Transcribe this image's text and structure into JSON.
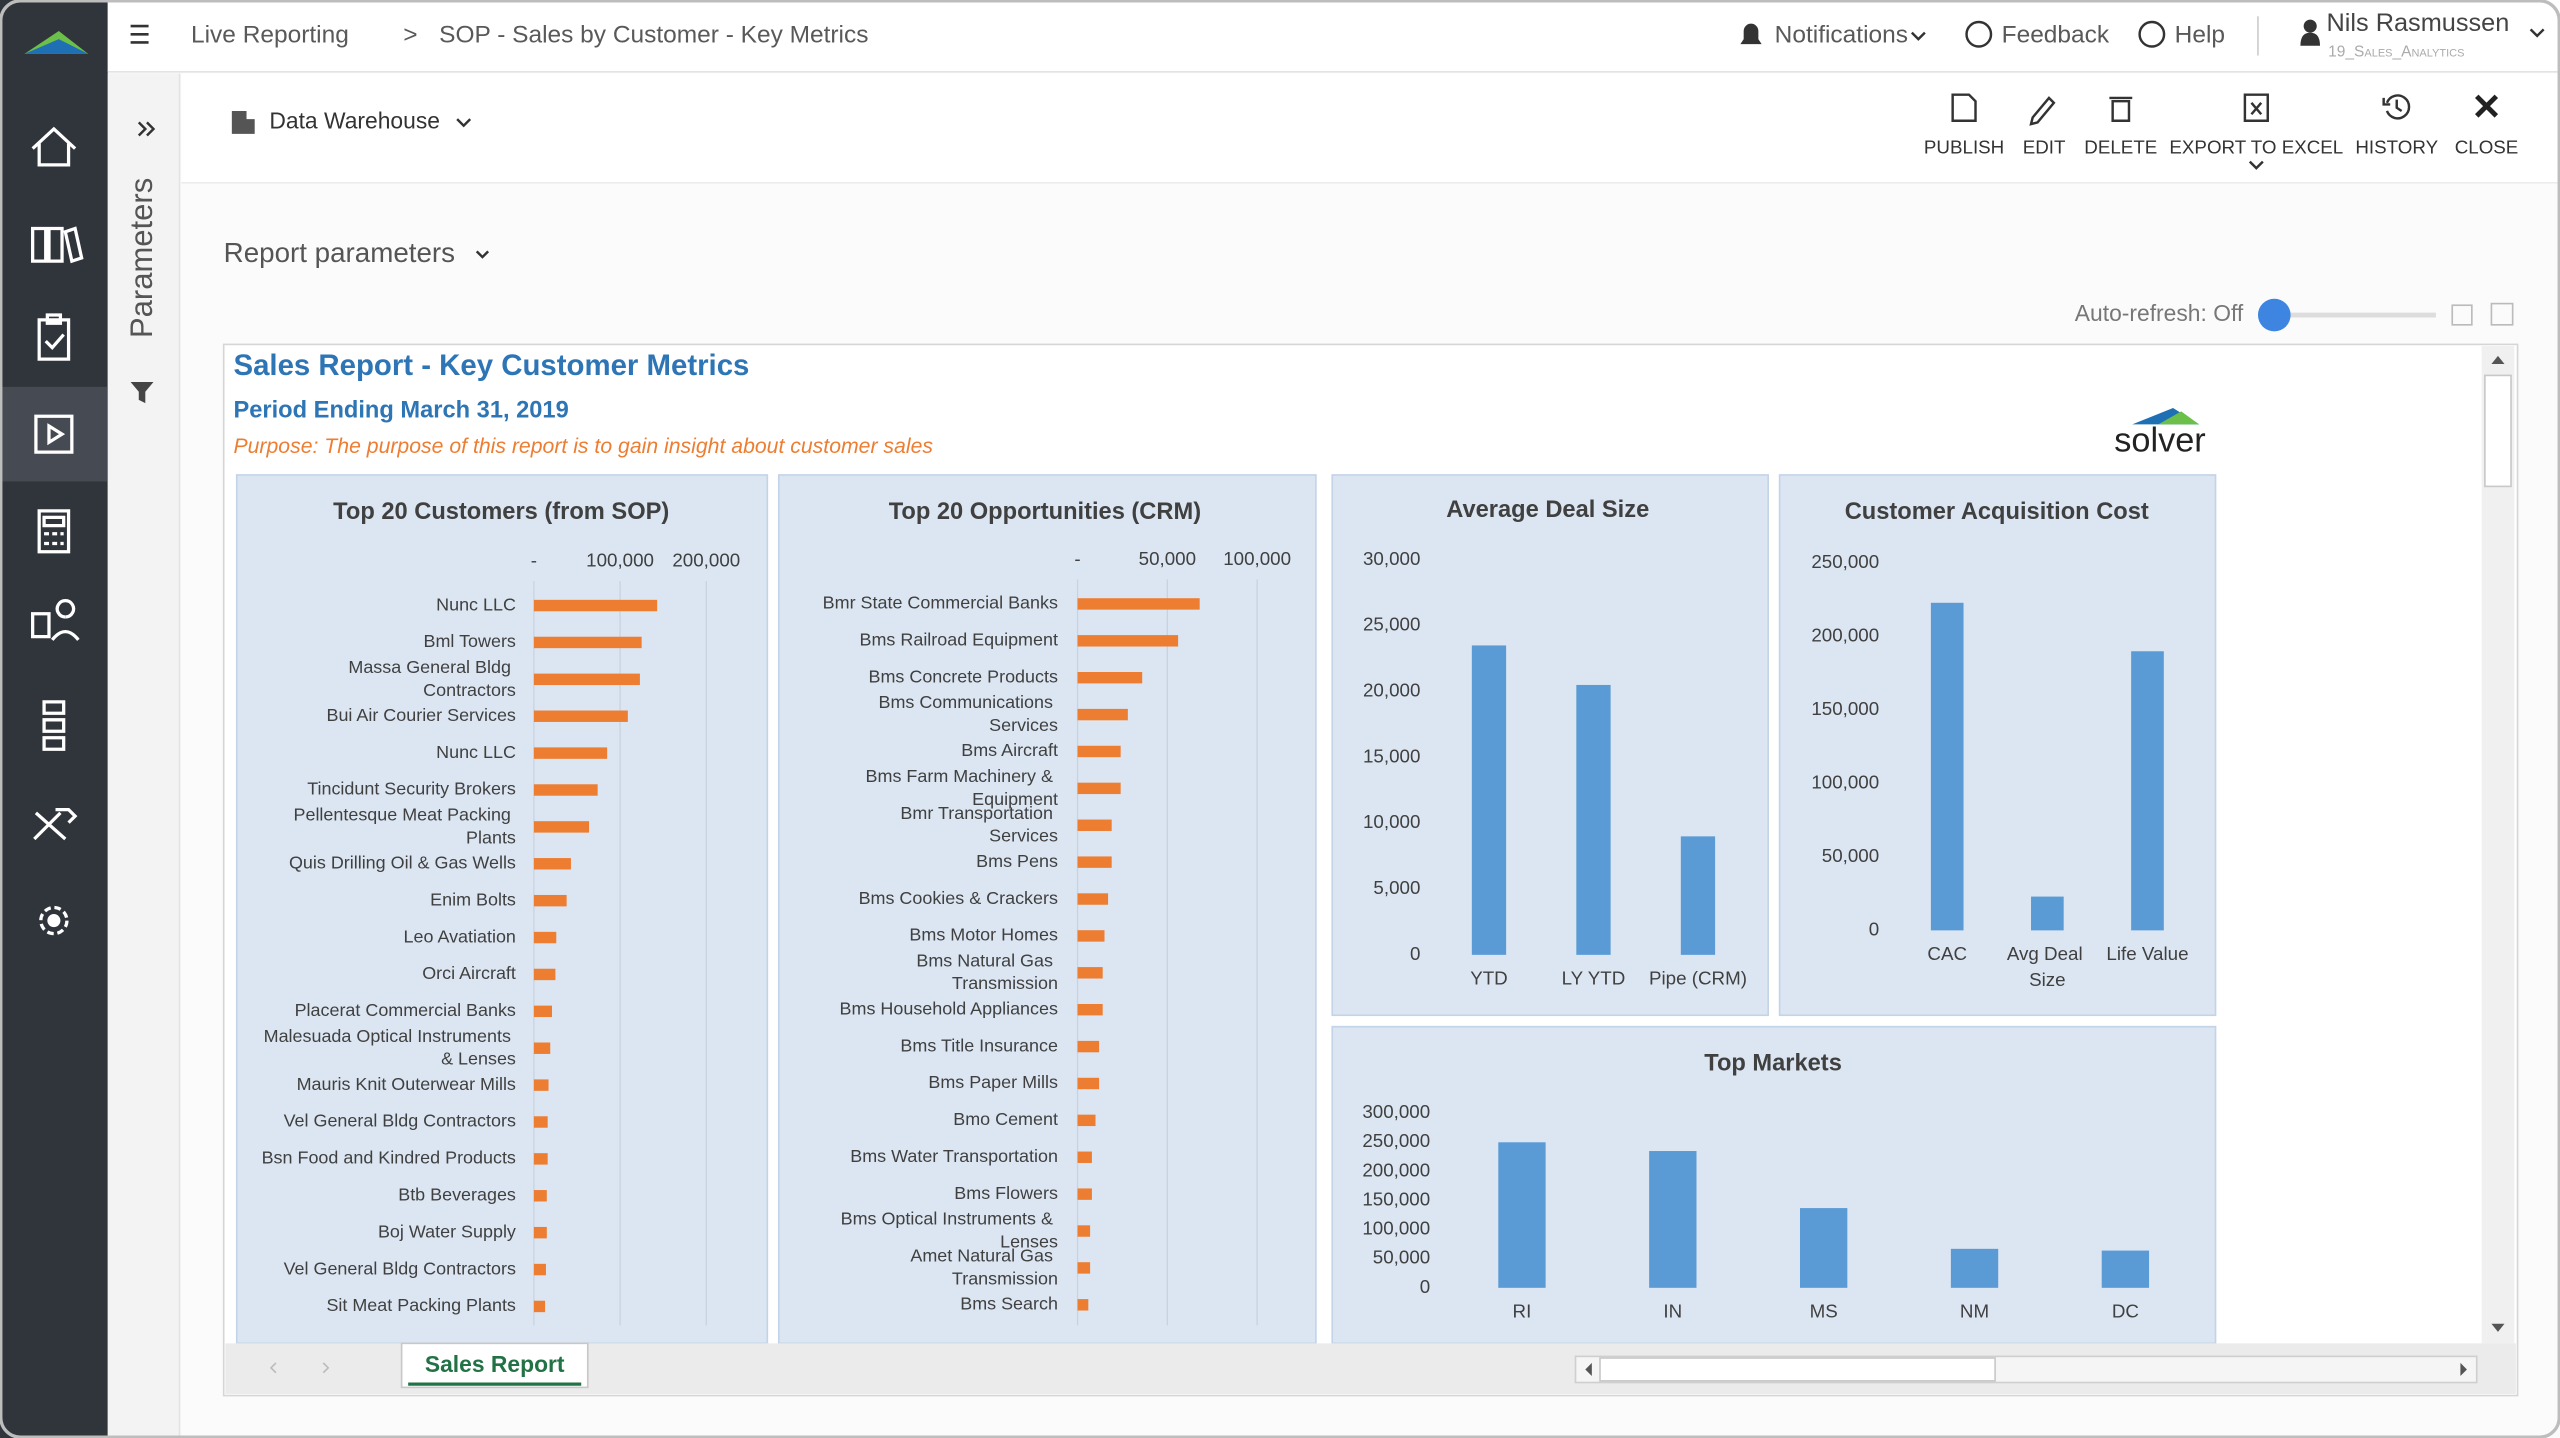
{
  "header": {
    "breadcrumb_root": "Live Reporting",
    "breadcrumb_separator": ">",
    "breadcrumb_page": "SOP - Sales by Customer - Key Metrics",
    "notifications": "Notifications",
    "feedback": "Feedback",
    "help": "Help",
    "user_name": "Nils Rasmussen",
    "user_role": "19_Sales_Analytics"
  },
  "side_panel": "Parameters",
  "toolbar": {
    "source": "Data Warehouse",
    "actions": [
      "PUBLISH",
      "EDIT",
      "DELETE",
      "EXPORT TO EXCEL",
      "HISTORY",
      "CLOSE"
    ]
  },
  "report_parameters": "Report parameters",
  "auto_refresh": "Auto-refresh: Off",
  "report": {
    "title": "Sales Report - Key Customer Metrics",
    "period": "Period Ending March 31, 2019",
    "purpose": "Purpose: The purpose of this report is to gain insight about customer sales",
    "logo": "solver"
  },
  "chart_data": [
    {
      "type": "bar",
      "orientation": "horizontal",
      "title": "Top 20 Customers (from SOP)",
      "color": "#ed7d31",
      "grid": true,
      "categories": [
        "Nunc LLC",
        "Bml Towers",
        "Massa General Bldg Contractors",
        "Bui Air Courier Services",
        "Nunc LLC",
        "Tincidunt Security Brokers",
        "Pellentesque Meat Packing Plants",
        "Quis Drilling Oil & Gas Wells",
        "Enim Bolts",
        "Leo Avatiation",
        "Orci Aircraft",
        "Placerat Commercial Banks",
        "Malesuada Optical Instruments & Lenses",
        "Mauris Knit Outerwear Mills",
        "Vel General Bldg Contractors",
        "Bsn Food and Kindred Products",
        "Btb Beverages",
        "Boj Water Supply",
        "Vel General Bldg Contractors",
        "Sit Meat Packing Plants"
      ],
      "values": [
        143000,
        125000,
        123000,
        109000,
        85000,
        74000,
        64000,
        43000,
        38000,
        26000,
        25000,
        21000,
        19000,
        17000,
        16000,
        16000,
        15000,
        15000,
        14000,
        13000
      ],
      "xlim": [
        0,
        250000
      ],
      "xticks": [
        {
          "value": 0,
          "label": "-"
        },
        {
          "value": 100000,
          "label": "100,000"
        },
        {
          "value": 200000,
          "label": "200,000"
        }
      ]
    },
    {
      "type": "bar",
      "orientation": "horizontal",
      "title": "Top 20 Opportunities (CRM)",
      "color": "#ed7d31",
      "grid": true,
      "categories": [
        "Bmr State Commercial Banks",
        "Bms Railroad Equipment",
        "Bms Concrete Products",
        "Bms Communications Services",
        "Bms Aircraft",
        "Bms Farm Machinery & Equipment",
        "Bmr Transportation Services",
        "Bms Pens",
        "Bms Cookies & Crackers",
        "Bms Motor Homes",
        "Bms Natural Gas Transmission",
        "Bms Household Appliances",
        "Bms Title Insurance",
        "Bms Paper Mills",
        "Bmo Cement",
        "Bms Water Transportation",
        "Bms Flowers",
        "Bms Optical Instruments & Lenses",
        "Amet Natural Gas Transmission",
        "Bms Search"
      ],
      "values": [
        68000,
        56000,
        36000,
        28000,
        24000,
        24000,
        19000,
        19000,
        17000,
        15000,
        14000,
        14000,
        12000,
        12000,
        10000,
        8000,
        8000,
        7000,
        7000,
        6000
      ],
      "xlim": [
        0,
        120000
      ],
      "xticks": [
        {
          "value": 0,
          "label": "-"
        },
        {
          "value": 50000,
          "label": "50,000"
        },
        {
          "value": 100000,
          "label": "100,000"
        }
      ]
    },
    {
      "type": "bar",
      "orientation": "vertical",
      "title": "Average Deal Size",
      "color": "#5b9bd5",
      "grid": false,
      "categories": [
        "YTD",
        "LY YTD",
        "Pipe (CRM)"
      ],
      "values": [
        23500,
        20500,
        9000
      ],
      "ylim": [
        0,
        30000
      ],
      "yticks": [
        0,
        {
          "value": 5000,
          "label": "5,000"
        },
        {
          "value": 10000,
          "label": "10,000"
        },
        {
          "value": 15000,
          "label": "15,000"
        },
        {
          "value": 20000,
          "label": "20,000"
        },
        {
          "value": 25000,
          "label": "25,000"
        },
        {
          "value": 30000,
          "label": "30,000"
        }
      ]
    },
    {
      "type": "bar",
      "orientation": "vertical",
      "title": "Customer Acquisition Cost",
      "color": "#5b9bd5",
      "grid": false,
      "categories": [
        "CAC",
        "Avg Deal Size",
        "Life Value"
      ],
      "values": [
        223000,
        23000,
        190000
      ],
      "ylim": [
        0,
        250000
      ],
      "yticks": [
        0,
        {
          "value": 50000,
          "label": "50,000"
        },
        {
          "value": 100000,
          "label": "100,000"
        },
        {
          "value": 150000,
          "label": "150,000"
        },
        {
          "value": 200000,
          "label": "200,000"
        },
        {
          "value": 250000,
          "label": "250,000"
        }
      ]
    },
    {
      "type": "bar",
      "orientation": "vertical",
      "title": "Top Markets",
      "color": "#5b9bd5",
      "grid": false,
      "categories": [
        "RI",
        "IN",
        "MS",
        "NM",
        "DC"
      ],
      "values": [
        250000,
        235000,
        137000,
        67000,
        64000
      ],
      "ylim": [
        0,
        300000
      ],
      "yticks": [
        0,
        {
          "value": 50000,
          "label": "50,000"
        },
        {
          "value": 100000,
          "label": "100,000"
        },
        {
          "value": 150000,
          "label": "150,000"
        },
        {
          "value": 200000,
          "label": "200,000"
        },
        {
          "value": 250000,
          "label": "250,000"
        },
        {
          "value": 300000,
          "label": "300,000"
        }
      ]
    }
  ],
  "sheet_tab": "Sales Report"
}
